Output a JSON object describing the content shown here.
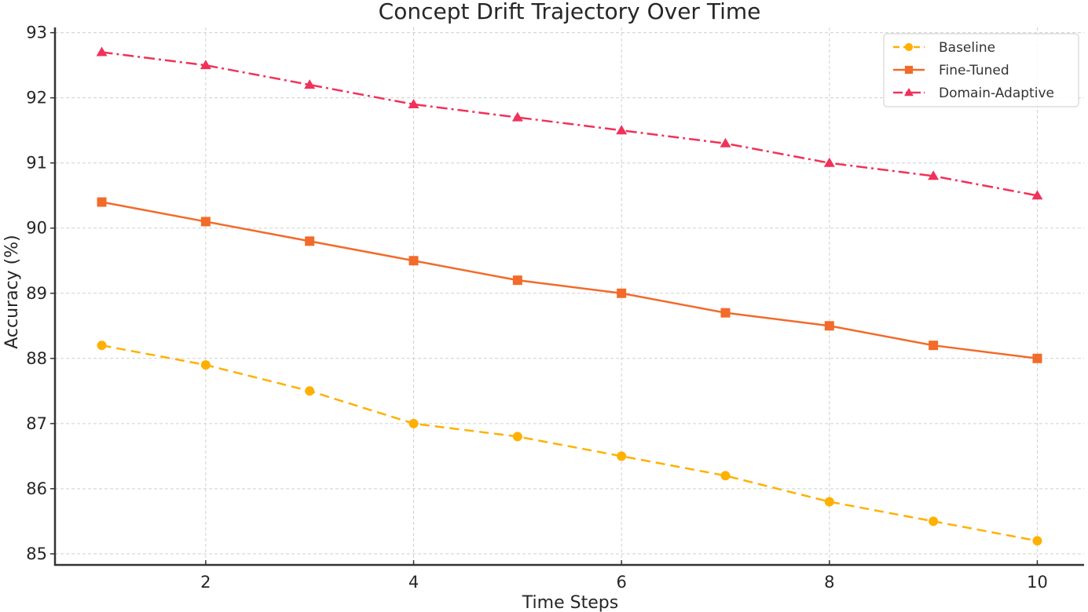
{
  "chart_data": {
    "type": "line",
    "title": "Concept Drift Trajectory Over Time",
    "xlabel": "Time Steps",
    "ylabel": "Accuracy (%)",
    "x": [
      1,
      2,
      3,
      4,
      5,
      6,
      7,
      8,
      9,
      10
    ],
    "xlim": [
      0.55,
      10.45
    ],
    "ylim": [
      84.83,
      93.08
    ],
    "xticks": [
      2,
      4,
      6,
      8,
      10
    ],
    "yticks": [
      85,
      86,
      87,
      88,
      89,
      90,
      91,
      92,
      93
    ],
    "grid": true,
    "legend_position": "top-right",
    "series": [
      {
        "name": "Baseline",
        "color": "#FFB000",
        "linestyle": "dashed",
        "marker": "circle",
        "values": [
          88.2,
          87.9,
          87.5,
          87.0,
          86.8,
          86.5,
          86.2,
          85.8,
          85.5,
          85.2
        ]
      },
      {
        "name": "Fine-Tuned",
        "color": "#F26B2A",
        "linestyle": "solid",
        "marker": "square",
        "values": [
          90.4,
          90.1,
          89.8,
          89.5,
          89.2,
          89.0,
          88.7,
          88.5,
          88.2,
          88.0
        ]
      },
      {
        "name": "Domain-Adaptive",
        "color": "#F0325A",
        "linestyle": "dashdot",
        "marker": "triangle",
        "values": [
          92.7,
          92.5,
          92.2,
          91.9,
          91.7,
          91.5,
          91.3,
          91.0,
          90.8,
          90.5
        ]
      }
    ]
  }
}
